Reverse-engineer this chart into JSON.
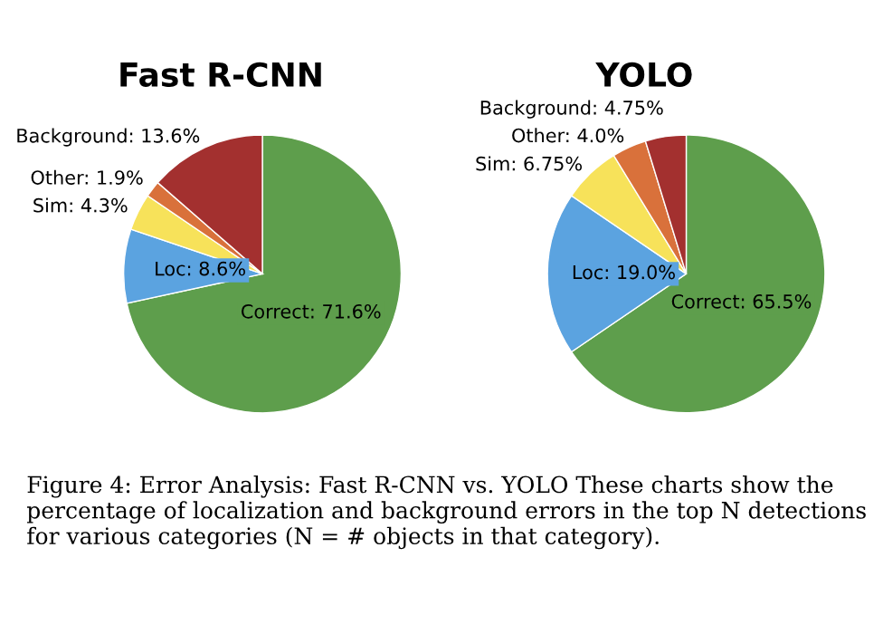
{
  "chart_data": [
    {
      "type": "pie",
      "title": "Fast R-CNN",
      "categories": [
        "Correct",
        "Loc",
        "Sim",
        "Other",
        "Background"
      ],
      "values": [
        71.6,
        8.6,
        4.3,
        1.9,
        13.6
      ],
      "value_labels": [
        "71.6%",
        "8.6%",
        "4.3%",
        "1.9%",
        "13.6%"
      ],
      "colors": [
        "#5e9e4c",
        "#5ba3e0",
        "#f7e25a",
        "#d9713b",
        "#a3302f"
      ]
    },
    {
      "type": "pie",
      "title": "YOLO",
      "categories": [
        "Correct",
        "Loc",
        "Sim",
        "Other",
        "Background"
      ],
      "values": [
        65.5,
        19.0,
        6.75,
        4.0,
        4.75
      ],
      "value_labels": [
        "65.5%",
        "19.0%",
        "6.75%",
        "4.0%",
        "4.75%"
      ],
      "colors": [
        "#5e9e4c",
        "#5ba3e0",
        "#f7e25a",
        "#d9713b",
        "#a3302f"
      ],
      "annotations": [
        "Figure 4: Error Analysis: Fast R-CNN vs. YOLO These charts show the percentage of localization and background errors in the top N detections for various categories (N = # objects in that category)."
      ]
    }
  ]
}
